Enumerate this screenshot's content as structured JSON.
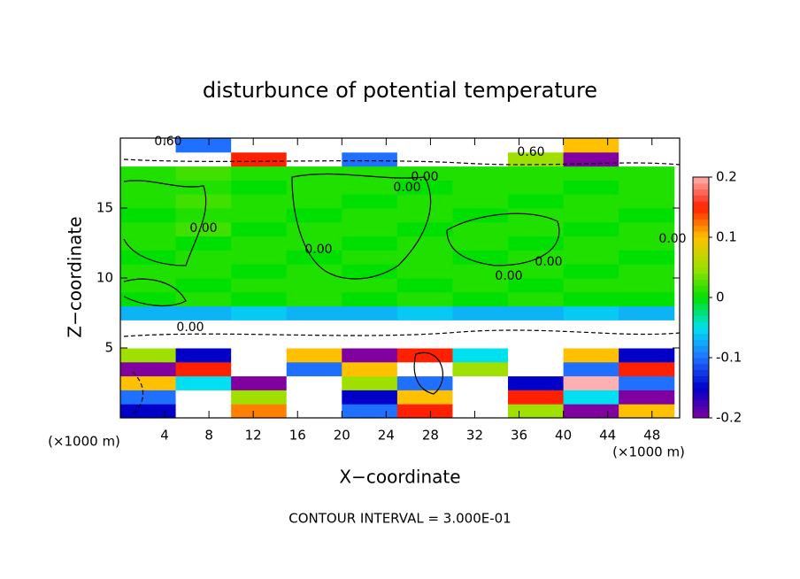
{
  "chart_data": {
    "type": "heatmap",
    "title": "disturbunce of potential temperature",
    "x_label": "X−coordinate",
    "y_label": "Z−coordinate",
    "unit_labels": [
      "(×1000 m)",
      "(×1000 m)"
    ],
    "footnote": "CONTOUR INTERVAL = 3.000E-01",
    "contour_labels": [
      "0.60",
      "0.60",
      "0.00",
      "0.00",
      "0.00",
      "0.00",
      "0.00",
      "0.00",
      "0.00",
      "0.00"
    ],
    "xlim": [
      0,
      50.5
    ],
    "ylim": [
      0,
      20
    ],
    "xticks": [
      4,
      8,
      12,
      16,
      20,
      24,
      28,
      32,
      36,
      40,
      44,
      48
    ],
    "yticks": [
      5,
      10,
      15
    ],
    "x": [
      2.5,
      7.5,
      12.5,
      17.5,
      22.5,
      27.5,
      32.5,
      37.5,
      42.5,
      47.5
    ],
    "y": [
      0.5,
      1.5,
      2.5,
      3.5,
      4.5,
      5.5,
      6.5,
      7.5,
      8.5,
      9.5,
      10.5,
      11.5,
      12.5,
      13.5,
      14.5,
      15.5,
      16.5,
      17.5,
      18.5,
      19.5
    ],
    "values": [
      [
        -0.15,
        0.3,
        0.12,
        -0.3,
        -0.1,
        0.15,
        -0.25,
        0.05,
        -0.2,
        0.1
      ],
      [
        -0.1,
        -0.3,
        0.05,
        0.3,
        -0.15,
        0.1,
        -0.3,
        0.15,
        -0.05,
        -0.2
      ],
      [
        0.1,
        -0.05,
        -0.2,
        0.3,
        0.05,
        -0.1,
        0.3,
        -0.15,
        0.2,
        -0.1
      ],
      [
        -0.2,
        0.15,
        0.3,
        -0.1,
        0.1,
        -0.25,
        0.05,
        0.3,
        -0.1,
        0.15
      ],
      [
        0.05,
        -0.15,
        -0.3,
        0.1,
        -0.2,
        0.15,
        -0.05,
        -0.3,
        0.1,
        -0.15
      ],
      [
        -0.3,
        -0.25,
        0.3,
        -0.3,
        -0.25,
        -0.3,
        0.3,
        -0.3,
        -0.25,
        -0.3
      ],
      [
        -0.3,
        0.3,
        -0.3,
        -0.3,
        0.3,
        -0.3,
        -0.3,
        0.3,
        -0.3,
        0.3
      ],
      [
        -0.07,
        -0.07,
        -0.06,
        -0.07,
        -0.07,
        -0.06,
        -0.07,
        -0.07,
        -0.06,
        -0.07
      ],
      [
        0.0,
        0.01,
        0.0,
        0.01,
        0.0,
        0.01,
        0.0,
        0.01,
        0.0,
        0.0
      ],
      [
        0.01,
        0.0,
        0.01,
        0.01,
        0.01,
        0.0,
        0.01,
        0.0,
        0.01,
        0.01
      ],
      [
        0.01,
        0.01,
        0.0,
        0.01,
        0.0,
        0.01,
        0.01,
        0.01,
        0.0,
        0.01
      ],
      [
        0.0,
        0.01,
        0.01,
        0.0,
        0.01,
        0.01,
        0.0,
        0.01,
        0.01,
        0.0
      ],
      [
        0.01,
        0.0,
        0.01,
        0.01,
        0.0,
        0.01,
        0.01,
        0.0,
        0.01,
        0.01
      ],
      [
        0.01,
        0.02,
        0.0,
        0.01,
        0.01,
        0.0,
        0.01,
        0.01,
        0.0,
        0.01
      ],
      [
        0.0,
        0.01,
        0.01,
        0.0,
        0.01,
        0.01,
        0.0,
        0.01,
        0.01,
        0.0
      ],
      [
        0.01,
        0.02,
        0.01,
        0.01,
        0.0,
        0.01,
        0.01,
        0.0,
        0.01,
        0.01
      ],
      [
        0.01,
        0.01,
        0.0,
        0.01,
        0.01,
        0.0,
        0.01,
        0.01,
        0.0,
        0.01
      ],
      [
        0.01,
        0.02,
        0.01,
        0.01,
        0.01,
        0.01,
        0.01,
        0.01,
        0.01,
        0.01
      ],
      [
        -0.3,
        0.3,
        0.15,
        0.3,
        -0.1,
        -0.3,
        0.3,
        0.05,
        -0.2,
        0.3
      ],
      [
        0.3,
        -0.1,
        0.3,
        0.3,
        0.3,
        0.3,
        -0.3,
        0.3,
        0.1,
        -0.3
      ]
    ],
    "colorbar": {
      "lim": [
        -0.2,
        0.2
      ],
      "ticks": [
        -0.2,
        -0.1,
        0,
        0.1,
        0.2
      ],
      "colors": [
        "#8000a0",
        "#0000c8",
        "#2070ff",
        "#00e0f0",
        "#00e000",
        "#a0e000",
        "#ffc000",
        "#ff2000",
        "#ffb0b0"
      ],
      "out_of_range_color": "#ffffff"
    }
  }
}
